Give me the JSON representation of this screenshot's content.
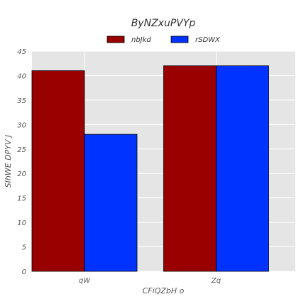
{
  "chart_data": {
    "type": "bar",
    "title": "ByNZxuPVYp",
    "xlabel": "CFiQZbH o",
    "ylabel": "SIhWE DPYV J",
    "categories": [
      "qW",
      "Zq"
    ],
    "series": [
      {
        "name": "nbJkd",
        "values": [
          41,
          42
        ],
        "color": "#990000"
      },
      {
        "name": "rSDWX",
        "values": [
          28,
          42
        ],
        "color": "#0033ff"
      }
    ],
    "ylim": [
      0,
      45
    ],
    "yticks": [
      0,
      5,
      10,
      15,
      20,
      25,
      30,
      35,
      40,
      45
    ],
    "grid": true,
    "legend": "top-center",
    "background": "#e5e5e5"
  }
}
